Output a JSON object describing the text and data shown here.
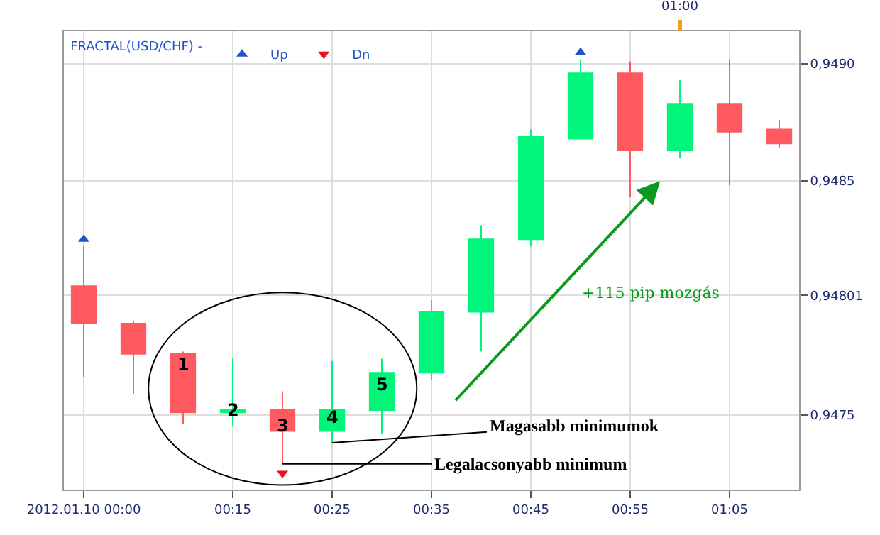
{
  "chart_data": {
    "type": "candlestick",
    "x": [
      "2012-01-10T00:00",
      "2012-01-10T00:05",
      "2012-01-10T00:10",
      "2012-01-10T00:15",
      "2012-01-10T00:20",
      "2012-01-10T00:25",
      "2012-01-10T00:30",
      "2012-01-10T00:35",
      "2012-01-10T00:40",
      "2012-01-10T00:45",
      "2012-01-10T00:50",
      "2012-01-10T00:55",
      "2012-01-10T01:00",
      "2012-01-10T01:05",
      "2012-01-10T01:10"
    ],
    "ohlc": [
      [
        0.94805,
        0.94822,
        0.94766,
        0.94789
      ],
      [
        0.94789,
        0.9479,
        0.94759,
        0.94776
      ],
      [
        0.94776,
        0.94777,
        0.94746,
        0.94751
      ],
      [
        0.94751,
        0.94774,
        0.94745,
        0.94752
      ],
      [
        0.94752,
        0.9476,
        0.94729,
        0.94743
      ],
      [
        0.94743,
        0.94773,
        0.94738,
        0.94752
      ],
      [
        0.94752,
        0.94774,
        0.94742,
        0.94768
      ],
      [
        0.94768,
        0.94799,
        0.94765,
        0.94794
      ],
      [
        0.94794,
        0.94831,
        0.94777,
        0.94825
      ],
      [
        0.94825,
        0.94872,
        0.94822,
        0.94869
      ],
      [
        0.94868,
        0.94902,
        0.94868,
        0.94896
      ],
      [
        0.94896,
        0.94901,
        0.94843,
        0.94863
      ],
      [
        0.94863,
        0.94893,
        0.9486,
        0.94883
      ],
      [
        0.94883,
        0.94902,
        0.94848,
        0.94871
      ],
      [
        0.94872,
        0.94876,
        0.94864,
        0.94866
      ]
    ],
    "colors": [
      "#ff5a5f",
      "#ff5a5f",
      "#ff5a5f",
      "#00f57a",
      "#ff5a5f",
      "#00f57a",
      "#00f57a",
      "#00f57a",
      "#00f57a",
      "#00f57a",
      "#00f57a",
      "#ff5a5f",
      "#00f57a",
      "#ff5a5f",
      "#ff5a5f"
    ],
    "series": [
      {
        "type": "scatter",
        "name": "Up",
        "color": "#2255cc",
        "x": [
          "2012-01-10T00:00",
          "2012-01-10T00:50"
        ],
        "values": [
          0.94825,
          0.94905
        ]
      },
      {
        "type": "scatter",
        "name": "Dn",
        "color": "#e8101a",
        "x": [
          "2012-01-10T00:20"
        ],
        "values": [
          0.94725
        ]
      }
    ],
    "marker": "triangle",
    "legend": "top left",
    "legend_title": "FRACTAL(USD/CHF) -",
    "xlim": [
      "2012-01-09T23:58",
      "2012-01-10T01:12"
    ],
    "xticks": [
      {
        "value": "2012-01-10T00:00",
        "label": "2012.01.10 00:00"
      },
      {
        "value": "2012-01-10T00:15",
        "label": "00:15"
      },
      {
        "value": "2012-01-10T00:25",
        "label": "00:25"
      },
      {
        "value": "2012-01-10T00:35",
        "label": "00:35"
      },
      {
        "value": "2012-01-10T00:45",
        "label": "00:45"
      },
      {
        "value": "2012-01-10T00:55",
        "label": "00:55"
      },
      {
        "value": "2012-01-10T01:05",
        "label": "01:05"
      }
    ],
    "ref_lines": [
      {
        "axis": "x",
        "value": "2012-01-10T01:00",
        "label": "01:00",
        "color": "#f0a020"
      }
    ],
    "ylim": [
      0.94718,
      0.94914
    ],
    "yticks": [
      {
        "value": 0.9475,
        "label": "0,9475"
      },
      {
        "value": 0.94801,
        "label": "0,94801"
      },
      {
        "value": 0.9485,
        "label": "0,9485"
      },
      {
        "value": 0.949,
        "label": "0,9490"
      }
    ],
    "grid": true,
    "annotations": [
      {
        "text": "1",
        "x": "2012-01-10T00:10",
        "y": 0.94751
      },
      {
        "text": "2",
        "x": "2012-01-10T00:15",
        "y": 0.94752
      },
      {
        "text": "3",
        "x": "2012-01-10T00:20",
        "y": 0.94743
      },
      {
        "text": "4",
        "x": "2012-01-10T00:25",
        "y": 0.94752
      },
      {
        "text": "5",
        "x": "2012-01-10T00:30",
        "y": 0.94768
      },
      "+115 pip mozgás",
      {
        "text": "Magasabb minimumok",
        "x": "2012-01-10T00:25",
        "y": 0.94738
      },
      {
        "text": "Legalacsonyabb minimum",
        "x": "2012-01-10T00:20",
        "y": 0.94729
      }
    ]
  }
}
